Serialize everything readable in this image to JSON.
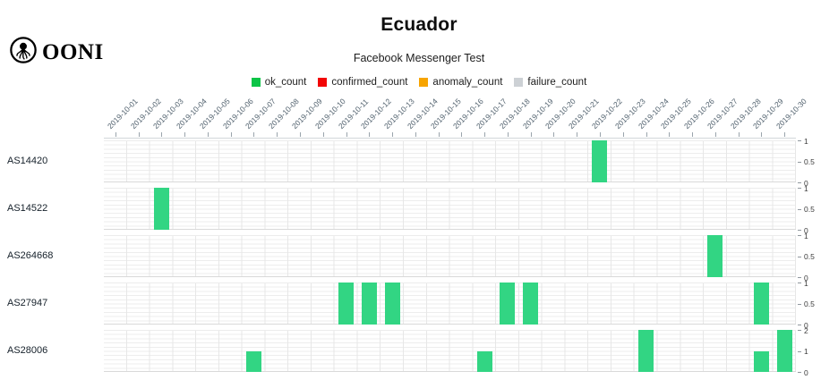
{
  "header": {
    "logo_text": "OONI",
    "title": "Ecuador",
    "subtitle": "Facebook Messenger Test"
  },
  "legend": {
    "position": "top-center",
    "items": [
      {
        "label": "ok_count",
        "color": "#0cc447"
      },
      {
        "label": "confirmed_count",
        "color": "#f20505"
      },
      {
        "label": "anomaly_count",
        "color": "#f7a400"
      },
      {
        "label": "failure_count",
        "color": "#cdd1d5"
      }
    ]
  },
  "chart_data": {
    "type": "bar",
    "title": "Ecuador",
    "subtitle": "Facebook Messenger Test",
    "xlabel": "",
    "ylabel": "",
    "grid": true,
    "bar_color": "#32d583",
    "x": [
      "2019-10-01",
      "2019-10-02",
      "2019-10-03",
      "2019-10-04",
      "2019-10-05",
      "2019-10-06",
      "2019-10-07",
      "2019-10-08",
      "2019-10-09",
      "2019-10-10",
      "2019-10-11",
      "2019-10-12",
      "2019-10-13",
      "2019-10-14",
      "2019-10-15",
      "2019-10-16",
      "2019-10-17",
      "2019-10-18",
      "2019-10-19",
      "2019-10-20",
      "2019-10-21",
      "2019-10-22",
      "2019-10-23",
      "2019-10-24",
      "2019-10-25",
      "2019-10-26",
      "2019-10-27",
      "2019-10-28",
      "2019-10-29",
      "2019-10-30"
    ],
    "series_name": "ok_count",
    "rows": [
      {
        "label": "AS14420",
        "ymax": 1,
        "yticks": [
          1,
          0.5,
          0
        ],
        "bars": [
          {
            "date": "2019-10-22",
            "value": 1
          }
        ]
      },
      {
        "label": "AS14522",
        "ymax": 1,
        "yticks": [
          1,
          0.5,
          0
        ],
        "bars": [
          {
            "date": "2019-10-03",
            "value": 1
          }
        ]
      },
      {
        "label": "AS264668",
        "ymax": 1,
        "yticks": [
          1,
          0.5,
          0
        ],
        "bars": [
          {
            "date": "2019-10-27",
            "value": 1
          }
        ]
      },
      {
        "label": "AS27947",
        "ymax": 1,
        "yticks": [
          1,
          0.5,
          0
        ],
        "bars": [
          {
            "date": "2019-10-11",
            "value": 1
          },
          {
            "date": "2019-10-12",
            "value": 1
          },
          {
            "date": "2019-10-13",
            "value": 1
          },
          {
            "date": "2019-10-18",
            "value": 1
          },
          {
            "date": "2019-10-19",
            "value": 1
          },
          {
            "date": "2019-10-29",
            "value": 1
          }
        ]
      },
      {
        "label": "AS28006",
        "ymax": 2,
        "yticks": [
          2,
          1,
          0
        ],
        "bars": [
          {
            "date": "2019-10-07",
            "value": 1
          },
          {
            "date": "2019-10-17",
            "value": 1
          },
          {
            "date": "2019-10-24",
            "value": 2
          },
          {
            "date": "2019-10-29",
            "value": 1
          },
          {
            "date": "2019-10-30",
            "value": 2
          }
        ]
      }
    ]
  }
}
